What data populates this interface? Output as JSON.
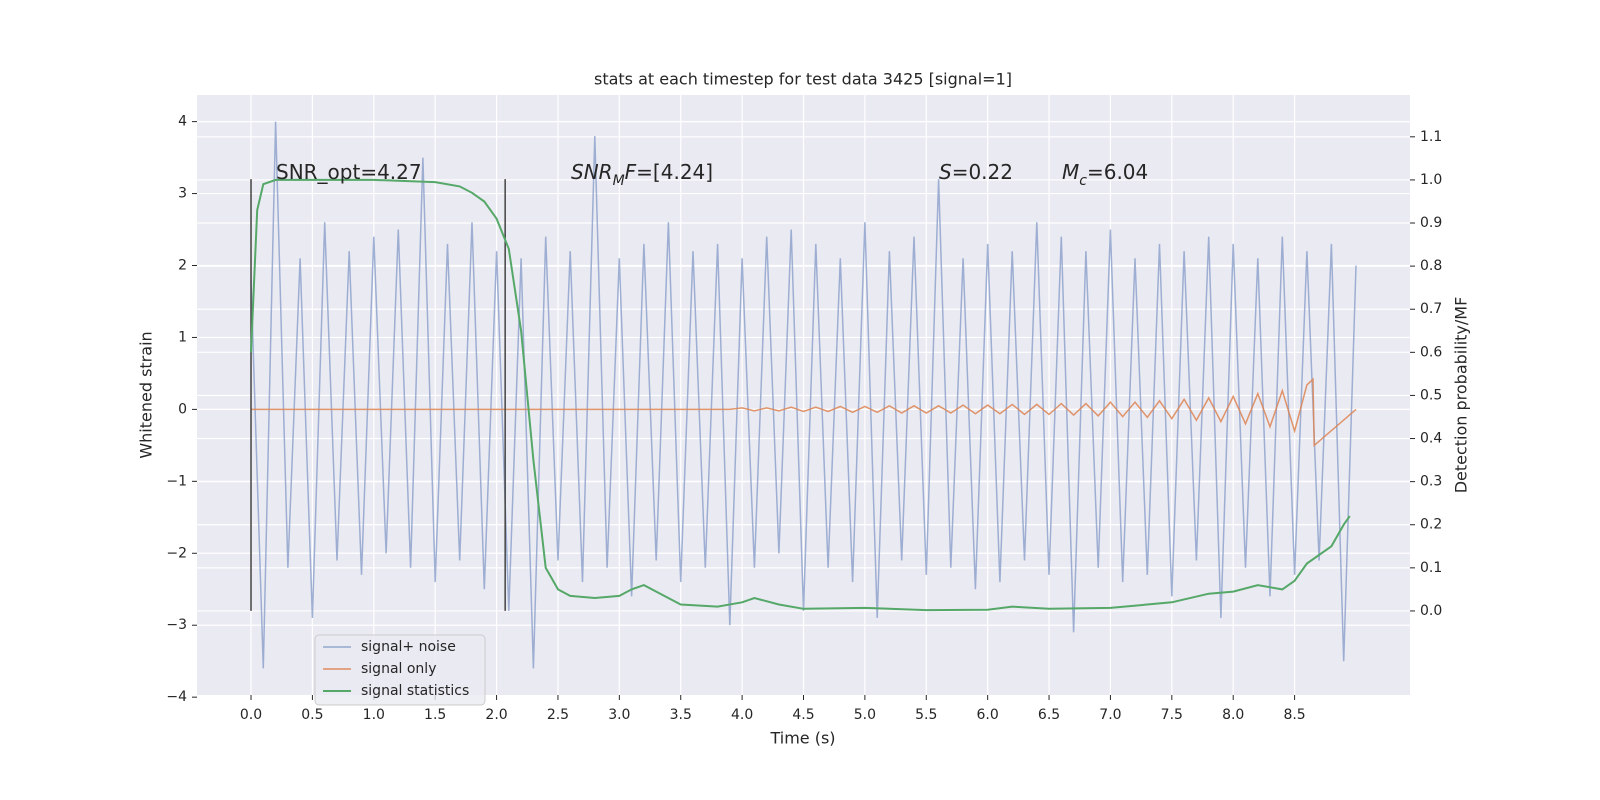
{
  "chart_data": {
    "type": "line",
    "title": "stats at each timestep for test data 3425 [signal=1]",
    "xlabel": "Time (s)",
    "ylabel": "Whitened strain",
    "y2label": "Detection probability/MF",
    "xlim": [
      -0.44,
      9.44
    ],
    "ylim": [
      -3.97,
      4.37
    ],
    "y2lim": [
      -0.195,
      1.197
    ],
    "xticks": [
      {
        "value": 0,
        "label": "0.0"
      },
      0.5,
      {
        "value": 1,
        "label": "1.0"
      },
      1.5,
      {
        "value": 2,
        "label": "2.0"
      },
      2.5,
      {
        "value": 3,
        "label": "3.0"
      },
      3.5,
      {
        "value": 4,
        "label": "4.0"
      },
      4.5,
      {
        "value": 5,
        "label": "5.0"
      },
      5.5,
      {
        "value": 6,
        "label": "6.0"
      },
      6.5,
      {
        "value": 7,
        "label": "7.0"
      },
      7.5,
      {
        "value": 8,
        "label": "8.0"
      },
      8.5
    ],
    "yticks": [
      {
        "value": -4,
        "label": "−4"
      },
      {
        "value": -3,
        "label": "−3"
      },
      {
        "value": -2,
        "label": "−2"
      },
      {
        "value": -1,
        "label": "−1"
      },
      0,
      1,
      2,
      3,
      4
    ],
    "y2ticks": [
      {
        "value": 0,
        "label": "0.0"
      },
      0.1,
      0.2,
      0.3,
      0.4,
      0.5,
      0.6,
      0.7,
      0.8,
      0.9,
      {
        "value": 1,
        "label": "1.0"
      },
      1.1
    ],
    "grid": true,
    "legend": "lower left",
    "vlines": [
      0,
      2.07
    ],
    "vline_range": [
      -2.8,
      3.2
    ],
    "vline_color": "#444444",
    "annotations": [
      [
        {
          "text": "SNR_opt=4.27"
        }
      ],
      [
        {
          "text": "SNR",
          "italic": true
        },
        {
          "text": "M",
          "italic": true,
          "sub": true
        },
        {
          "text": "F",
          "italic": true
        },
        {
          "text": "=[4.24]"
        }
      ],
      [
        {
          "text": "S",
          "italic": true
        },
        {
          "text": "=0.22"
        }
      ],
      [
        {
          "text": "M",
          "italic": true
        },
        {
          "text": "c",
          "italic": true,
          "sub": true
        },
        {
          "text": "=6.04"
        }
      ]
    ],
    "series": [
      {
        "name": "signal+ noise",
        "color": "#8fa3cc",
        "x": [
          0,
          0.1,
          0.2,
          0.3,
          0.4,
          0.5,
          0.6,
          0.7,
          0.8,
          0.9,
          1,
          1.1,
          1.2,
          1.3,
          1.4,
          1.5,
          1.6,
          1.7,
          1.8,
          1.9,
          2,
          2.1,
          2.2,
          2.3,
          2.4,
          2.5,
          2.6,
          2.7,
          2.8,
          2.9,
          3,
          3.1,
          3.2,
          3.3,
          3.4,
          3.5,
          3.6,
          3.7,
          3.8,
          3.9,
          4,
          4.1,
          4.2,
          4.3,
          4.4,
          4.5,
          4.6,
          4.7,
          4.8,
          4.9,
          5,
          5.1,
          5.2,
          5.3,
          5.4,
          5.5,
          5.6,
          5.7,
          5.8,
          5.9,
          6,
          6.1,
          6.2,
          6.3,
          6.4,
          6.5,
          6.6,
          6.7,
          6.8,
          6.9,
          7,
          7.1,
          7.2,
          7.3,
          7.4,
          7.5,
          7.6,
          7.7,
          7.8,
          7.9,
          8,
          8.1,
          8.2,
          8.3,
          8.4,
          8.5,
          8.6,
          8.7,
          8.8,
          8.9,
          9
        ],
        "values": [
          1.8,
          -3.6,
          4.0,
          -2.2,
          2.1,
          -2.9,
          2.6,
          -2.1,
          2.2,
          -2.3,
          2.4,
          -2.0,
          2.5,
          -2.2,
          3.5,
          -2.4,
          2.3,
          -2.1,
          2.6,
          -2.5,
          2.2,
          -2.8,
          2.1,
          -3.6,
          2.4,
          -2.1,
          2.2,
          -2.4,
          3.8,
          -2.2,
          2.1,
          -2.6,
          2.3,
          -2.1,
          2.6,
          -2.4,
          2.2,
          -2.2,
          2.3,
          -3.0,
          2.1,
          -2.2,
          2.4,
          -2.0,
          2.5,
          -2.8,
          2.3,
          -2.2,
          2.1,
          -2.4,
          2.6,
          -2.9,
          2.2,
          -2.1,
          2.4,
          -2.3,
          3.2,
          -2.2,
          2.1,
          -2.5,
          2.3,
          -2.4,
          2.2,
          -2.1,
          2.6,
          -2.3,
          2.4,
          -3.1,
          2.2,
          -2.2,
          2.5,
          -2.4,
          2.1,
          -2.3,
          2.3,
          -2.6,
          2.2,
          -2.1,
          2.4,
          -2.9,
          2.3,
          -2.2,
          2.1,
          -2.6,
          2.4,
          -2.3,
          2.2,
          -2.1,
          2.3,
          -3.5,
          2.0
        ]
      },
      {
        "name": "signal only",
        "color": "#dd8452",
        "x": [
          0,
          3.9,
          4.0,
          4.1,
          4.2,
          4.3,
          4.4,
          4.5,
          4.6,
          4.7,
          4.8,
          4.9,
          5.0,
          5.1,
          5.2,
          5.3,
          5.4,
          5.5,
          5.6,
          5.7,
          5.8,
          5.9,
          6.0,
          6.1,
          6.2,
          6.3,
          6.4,
          6.5,
          6.6,
          6.7,
          6.8,
          6.9,
          7.0,
          7.1,
          7.2,
          7.3,
          7.4,
          7.5,
          7.6,
          7.7,
          7.8,
          7.9,
          8.0,
          8.1,
          8.2,
          8.3,
          8.4,
          8.5,
          8.6,
          8.65,
          8.66,
          9
        ],
        "values": [
          0,
          0,
          0.02,
          -0.02,
          0.02,
          -0.02,
          0.03,
          -0.03,
          0.03,
          -0.03,
          0.04,
          -0.04,
          0.04,
          -0.04,
          0.05,
          -0.05,
          0.05,
          -0.05,
          0.05,
          -0.05,
          0.06,
          -0.06,
          0.06,
          -0.06,
          0.07,
          -0.07,
          0.07,
          -0.07,
          0.08,
          -0.08,
          0.08,
          -0.09,
          0.1,
          -0.1,
          0.1,
          -0.11,
          0.12,
          -0.13,
          0.14,
          -0.15,
          0.16,
          -0.17,
          0.18,
          -0.2,
          0.22,
          -0.24,
          0.26,
          -0.3,
          0.34,
          0.42,
          -0.5,
          0
        ]
      },
      {
        "name": "signal statistics",
        "color": "#55a868",
        "axis": "y2",
        "x": [
          0,
          0.05,
          0.1,
          0.2,
          0.5,
          1.0,
          1.5,
          1.7,
          1.8,
          1.9,
          2.0,
          2.1,
          2.2,
          2.3,
          2.4,
          2.5,
          2.6,
          2.8,
          3.0,
          3.1,
          3.2,
          3.3,
          3.5,
          3.8,
          4.0,
          4.1,
          4.3,
          4.5,
          5.0,
          5.5,
          6.0,
          6.2,
          6.5,
          7.0,
          7.5,
          7.8,
          8.0,
          8.2,
          8.4,
          8.5,
          8.6,
          8.8,
          8.9,
          8.95
        ],
        "values": [
          0.6,
          0.93,
          0.99,
          1.0,
          1.0,
          1.0,
          0.995,
          0.985,
          0.97,
          0.95,
          0.91,
          0.84,
          0.65,
          0.35,
          0.1,
          0.05,
          0.035,
          0.03,
          0.035,
          0.05,
          0.06,
          0.045,
          0.015,
          0.01,
          0.02,
          0.03,
          0.015,
          0.005,
          0.007,
          0.002,
          0.003,
          0.01,
          0.005,
          0.007,
          0.02,
          0.04,
          0.045,
          0.06,
          0.05,
          0.07,
          0.11,
          0.15,
          0.2,
          0.22
        ]
      }
    ]
  }
}
